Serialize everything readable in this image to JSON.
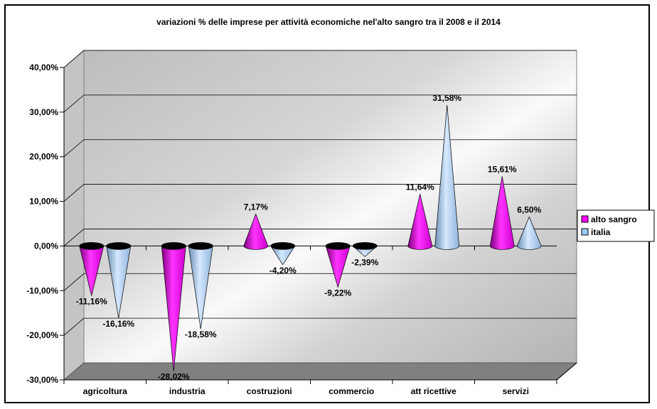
{
  "chart_data": {
    "type": "bar",
    "title": "variazioni % delle imprese per attività economiche nel'alto sangro tra il 2008 e il 2014",
    "categories": [
      "agricoltura",
      "industria",
      "costruzioni",
      "commercio",
      "att ricettive",
      "servizi"
    ],
    "series": [
      {
        "name": "alto sangro",
        "color": "#ff00ff",
        "values": [
          -11.16,
          -28.02,
          7.17,
          -9.22,
          11.64,
          15.61
        ],
        "labels": [
          "-11,16%",
          "-28,02%",
          "7,17%",
          "-9,22%",
          "11,64%",
          "15,61%"
        ]
      },
      {
        "name": "italia",
        "color": "#99ccff",
        "values": [
          -16.16,
          -18.58,
          -4.2,
          -2.39,
          31.58,
          6.5
        ],
        "labels": [
          "-16,16%",
          "-18,58%",
          "-4,20%",
          "-2,39%",
          "31,58%",
          "6,50%"
        ]
      }
    ],
    "ylim": [
      -30,
      40
    ],
    "yticks": [
      -30,
      -20,
      -10,
      0,
      10,
      20,
      30,
      40
    ],
    "ytick_labels": [
      "-30,00%",
      "-20,00%",
      "-10,00%",
      "0,00%",
      "10,00%",
      "20,00%",
      "30,00%",
      "40,00%"
    ],
    "grid": true,
    "legend": "right",
    "shape": "cone-3d"
  }
}
